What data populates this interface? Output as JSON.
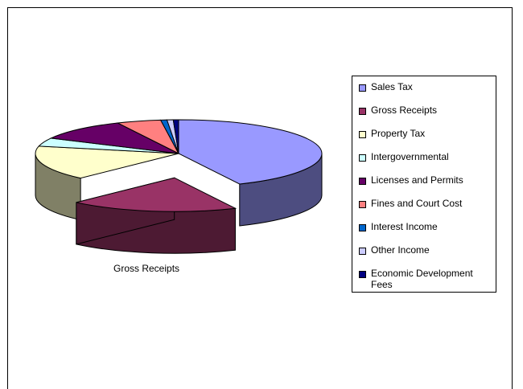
{
  "chart_data": {
    "type": "pie",
    "title": "",
    "three_d": true,
    "exploded_slice": "Gross Receipts",
    "series": [
      {
        "name": "Sales Tax",
        "value": 43.0,
        "color": "#9999FF",
        "side": "#4D4D80"
      },
      {
        "name": "Gross Receipts",
        "value": 19.0,
        "color": "#993366",
        "side": "#4D1A33"
      },
      {
        "name": "Property Tax",
        "value": 16.5,
        "color": "#FFFFCC",
        "side": "#808066"
      },
      {
        "name": "Intergovernmental",
        "value": 4.0,
        "color": "#CCFFFF",
        "side": "#668080"
      },
      {
        "name": "Licenses and Permits",
        "value": 10.5,
        "color": "#660066",
        "side": "#330033"
      },
      {
        "name": "Fines and Court Cost",
        "value": 5.0,
        "color": "#FF8080",
        "side": "#804040"
      },
      {
        "name": "Interest Income",
        "value": 0.7,
        "color": "#0066CC",
        "side": "#003366"
      },
      {
        "name": "Other Income",
        "value": 0.7,
        "color": "#CCCCFF",
        "side": "#666680"
      },
      {
        "name": "Economic Development Fees",
        "value": 0.6,
        "color": "#000080",
        "side": "#000040"
      }
    ],
    "data_labels": [
      "Gross Receipts"
    ],
    "legend_position": "right"
  },
  "legend": {
    "items": [
      {
        "label": "Sales Tax",
        "color": "#9999FF"
      },
      {
        "label": "Gross Receipts",
        "color": "#993366"
      },
      {
        "label": "Property Tax",
        "color": "#FFFFCC"
      },
      {
        "label": "Intergovernmental",
        "color": "#CCFFFF"
      },
      {
        "label": "Licenses and Permits",
        "color": "#660066"
      },
      {
        "label": "Fines and Court Cost",
        "color": "#FF8080"
      },
      {
        "label": "Interest Income",
        "color": "#0066CC"
      },
      {
        "label": "Other Income",
        "color": "#CCCCFF"
      },
      {
        "label": "Economic Development Fees",
        "color": "#000080"
      }
    ]
  },
  "callout": {
    "text": "Gross Receipts"
  }
}
